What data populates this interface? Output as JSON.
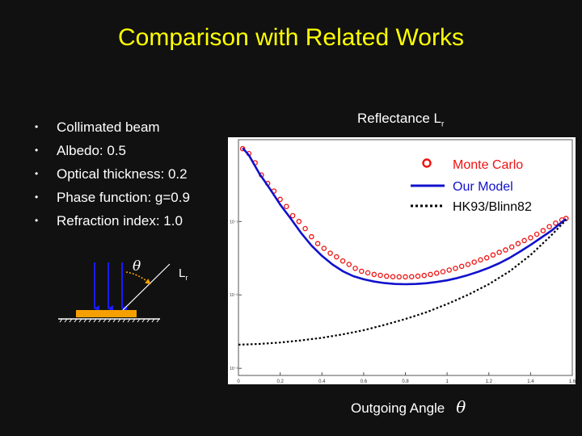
{
  "slide": {
    "title": "Comparison with Related Works",
    "bullets": [
      "Collimated beam",
      "Albedo: 0.5",
      "Optical thickness: 0.2",
      "Phase function: g=0.9",
      "Refraction index: 1.0"
    ],
    "bullet_glyph": "•"
  },
  "diagram": {
    "theta_symbol": "θ",
    "lr_main": "L",
    "lr_sub": "r",
    "slab_color": "#f5a000",
    "beam_color": "#1a1aff",
    "arrow_color": "#f5a000"
  },
  "chart_data": {
    "type": "line",
    "title_main": "Reflectance L",
    "title_sub": "r",
    "xlabel": "Outgoing Angle",
    "xlabel_symbol": "θ",
    "x_ticks": [
      "0",
      "0.2",
      "0.4",
      "0.6",
      "0.8",
      "1",
      "1.2",
      "1.4",
      "1.6"
    ],
    "xlim": [
      0,
      1.6
    ],
    "ylog": true,
    "ylim": [
      0.0008,
      1.3
    ],
    "y_ticks": [
      {
        "value": 0.1,
        "label": "10⁻¹"
      },
      {
        "value": 0.01,
        "label": "10⁻²"
      },
      {
        "value": 0.001,
        "label": "10⁻³"
      }
    ],
    "legend_position": "top-right",
    "series": [
      {
        "name": "Monte Carlo",
        "style": "markers",
        "color": "#ee1111",
        "x": [
          0.02,
          0.05,
          0.08,
          0.11,
          0.14,
          0.17,
          0.2,
          0.23,
          0.26,
          0.29,
          0.32,
          0.35,
          0.38,
          0.41,
          0.44,
          0.47,
          0.5,
          0.53,
          0.56,
          0.59,
          0.62,
          0.65,
          0.68,
          0.71,
          0.74,
          0.77,
          0.8,
          0.83,
          0.86,
          0.89,
          0.92,
          0.95,
          0.98,
          1.01,
          1.04,
          1.07,
          1.1,
          1.13,
          1.16,
          1.19,
          1.22,
          1.25,
          1.28,
          1.31,
          1.34,
          1.37,
          1.4,
          1.43,
          1.46,
          1.49,
          1.52,
          1.55,
          1.57
        ],
        "y": [
          0.98,
          0.84,
          0.63,
          0.43,
          0.33,
          0.26,
          0.2,
          0.16,
          0.12,
          0.1,
          0.08,
          0.062,
          0.05,
          0.043,
          0.037,
          0.033,
          0.029,
          0.026,
          0.023,
          0.021,
          0.02,
          0.019,
          0.0185,
          0.018,
          0.0177,
          0.0176,
          0.0176,
          0.0177,
          0.018,
          0.0184,
          0.019,
          0.0198,
          0.0207,
          0.0218,
          0.023,
          0.0245,
          0.026,
          0.028,
          0.03,
          0.032,
          0.035,
          0.038,
          0.041,
          0.045,
          0.05,
          0.055,
          0.06,
          0.067,
          0.075,
          0.085,
          0.095,
          0.105,
          0.11
        ]
      },
      {
        "name": "Our Model",
        "style": "solid",
        "color": "#1111cc",
        "x": [
          0.02,
          0.05,
          0.1,
          0.15,
          0.2,
          0.25,
          0.3,
          0.35,
          0.4,
          0.45,
          0.5,
          0.55,
          0.6,
          0.65,
          0.7,
          0.75,
          0.8,
          0.85,
          0.9,
          0.95,
          1.0,
          1.05,
          1.1,
          1.15,
          1.2,
          1.25,
          1.3,
          1.35,
          1.4,
          1.45,
          1.5,
          1.55,
          1.57
        ],
        "y": [
          1.0,
          0.8,
          0.45,
          0.28,
          0.17,
          0.11,
          0.07,
          0.047,
          0.034,
          0.026,
          0.021,
          0.018,
          0.0163,
          0.0152,
          0.0145,
          0.0141,
          0.014,
          0.0141,
          0.0144,
          0.015,
          0.0158,
          0.017,
          0.0186,
          0.0207,
          0.0234,
          0.027,
          0.032,
          0.039,
          0.048,
          0.06,
          0.075,
          0.098,
          0.108
        ]
      },
      {
        "name": "HK93/Blinn82",
        "style": "dotted",
        "color": "#000000",
        "x": [
          0,
          0.1,
          0.2,
          0.3,
          0.4,
          0.5,
          0.6,
          0.7,
          0.8,
          0.9,
          1.0,
          1.1,
          1.2,
          1.3,
          1.4,
          1.5,
          1.57
        ],
        "y": [
          0.0021,
          0.00215,
          0.00225,
          0.0024,
          0.0026,
          0.0029,
          0.0033,
          0.0039,
          0.0047,
          0.0058,
          0.0075,
          0.01,
          0.014,
          0.021,
          0.035,
          0.065,
          0.105
        ]
      }
    ]
  }
}
